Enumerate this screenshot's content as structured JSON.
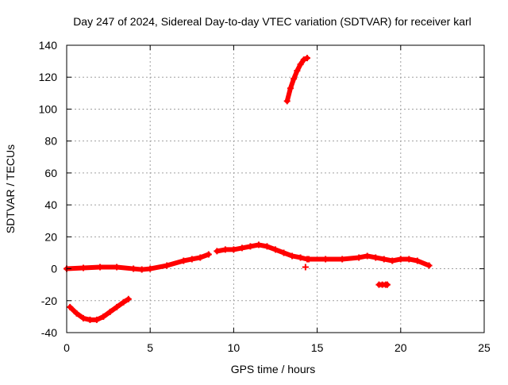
{
  "chart_data": {
    "type": "scatter",
    "title": "Day 247 of 2024, Sidereal Day-to-day VTEC variation (SDTVAR) for receiver karl",
    "xlabel": "GPS time / hours",
    "ylabel": "SDTVAR / TECUs",
    "xlim": [
      0,
      25
    ],
    "ylim": [
      -40,
      140
    ],
    "xticks": [
      0,
      5,
      10,
      15,
      20,
      25
    ],
    "yticks": [
      -40,
      -20,
      0,
      20,
      40,
      60,
      80,
      100,
      120,
      140
    ],
    "grid": true,
    "legend": "none",
    "marker": "plus",
    "series": [
      {
        "name": "baseline",
        "color": "#ff0000",
        "x": [
          0.0,
          1.0,
          2.0,
          3.0,
          4.0,
          4.5,
          5.0,
          6.0,
          7.0,
          7.5,
          8.0,
          8.5
        ],
        "y": [
          0,
          0.5,
          1,
          1,
          0,
          -0.5,
          0,
          2,
          5,
          6,
          7,
          9
        ]
      },
      {
        "name": "baseline-2",
        "color": "#ff0000",
        "x": [
          9.0,
          9.5,
          10.0,
          10.5,
          11.0,
          11.5,
          12.0,
          12.5,
          13.0,
          13.5,
          14.0,
          14.4
        ],
        "y": [
          11,
          12,
          12,
          13,
          14,
          15,
          14,
          12,
          10,
          8,
          7,
          6
        ]
      },
      {
        "name": "baseline-3",
        "color": "#ff0000",
        "x": [
          14.5,
          15.5,
          16.5,
          17.5,
          18.0,
          18.5,
          19.0,
          19.5,
          20.0,
          20.5,
          21.0,
          21.7
        ],
        "y": [
          6,
          6,
          6,
          7,
          8,
          7,
          6,
          5,
          6,
          6,
          5,
          2
        ]
      },
      {
        "name": "arc",
        "color": "#ff0000",
        "x": [
          0.2,
          0.6,
          1.0,
          1.4,
          1.8,
          2.2,
          2.6,
          3.0,
          3.4,
          3.7
        ],
        "y": [
          -24,
          -28,
          -31,
          -32,
          -32,
          -30,
          -27,
          -24,
          -21,
          -19
        ]
      },
      {
        "name": "rise",
        "color": "#ff0000",
        "x": [
          13.2,
          13.4,
          13.6,
          13.8,
          14.0,
          14.2,
          14.4
        ],
        "y": [
          105,
          113,
          119,
          124,
          128,
          131,
          132
        ]
      },
      {
        "name": "dash",
        "color": "#ff0000",
        "x": [
          18.7,
          18.9,
          19.1,
          19.2
        ],
        "y": [
          -10,
          -10,
          -10,
          -10
        ]
      },
      {
        "name": "dot",
        "color": "#ff0000",
        "x": [
          14.3
        ],
        "y": [
          1
        ]
      }
    ]
  }
}
